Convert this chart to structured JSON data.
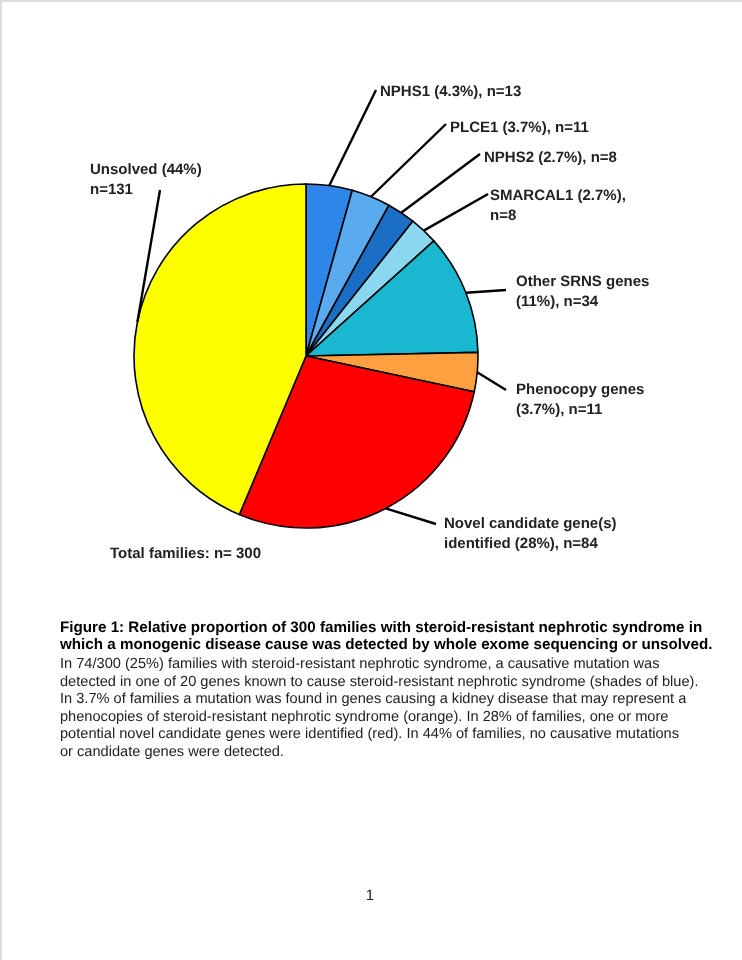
{
  "chart_data": {
    "type": "pie",
    "title": "Figure 1:  Relative proportion of 300 families with steroid-resistant nephrotic syndrome in which a monogenic disease cause was detected by whole exome sequencing or unsolved.",
    "categories": [
      "NPHS1 (4.3%), n=13",
      "PLCE1 (3.7%), n=11",
      "NPHS2 (2.7%), n=8",
      "SMARCAL1 (2.7%),\nn=8",
      "Other SRNS genes\n(11%), n=34",
      "Phenocopy genes\n(3.7%), n=11",
      "Novel candidate gene(s)\nidentified (28%), n=84",
      "Unsolved (44%)\nn=131"
    ],
    "values": [
      13,
      11,
      8,
      8,
      34,
      11,
      84,
      131
    ],
    "colors": [
      "#2e86e8",
      "#5aaaf0",
      "#1a6fc4",
      "#8ad8f0",
      "#1ab8d0",
      "#ffa040",
      "#ff0000",
      "#ffff00"
    ],
    "annotations": [
      "Total families: n= 300",
      "In 74/300 (25%) families with steroid-resistant nephrotic syndrome, a causative mutation was detected in one of 20 genes known to cause steroid-resistant nephrotic syndrome (shades of blue).  In 3.7% of families a mutation was found in genes causing a kidney disease that may represent a phenocopies of steroid-resistant nephrotic syndrome (orange).  In 28% of families, one or more potential novel candidate genes were identified (red).  In 44% of families, no causative mutations or candidate genes were detected.",
      "1"
    ]
  }
}
